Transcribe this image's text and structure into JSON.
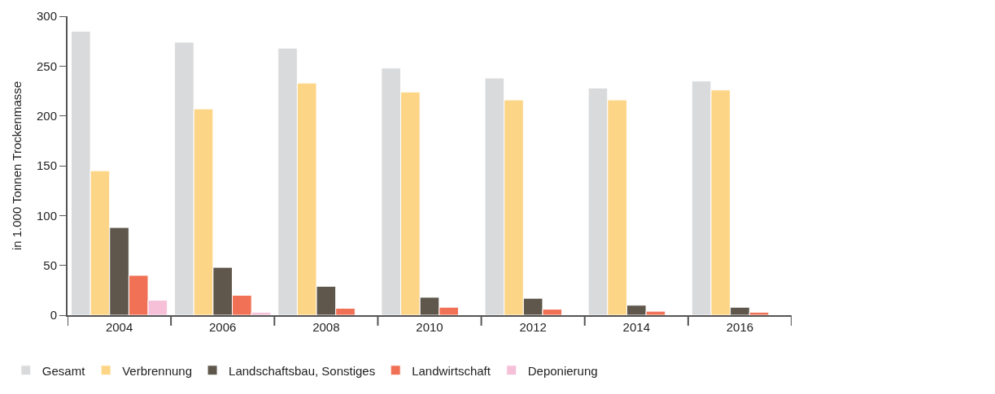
{
  "chart_data": {
    "type": "bar",
    "ylabel": "in 1.000 Tonnen Trockenmasse",
    "categories": [
      "2004",
      "2006",
      "2008",
      "2010",
      "2012",
      "2014",
      "2016"
    ],
    "series": [
      {
        "name": "Gesamt",
        "color": "#d9dadb",
        "values": [
          285,
          274,
          268,
          248,
          238,
          228,
          235
        ]
      },
      {
        "name": "Verbrennung",
        "color": "#fdd587",
        "values": [
          145,
          207,
          233,
          224,
          216,
          216,
          226
        ]
      },
      {
        "name": "Landschaftsbau, Sonstiges",
        "color": "#5f574c",
        "values": [
          88,
          48,
          29,
          18,
          17,
          10,
          8
        ]
      },
      {
        "name": "Landwirtschaft",
        "color": "#f07155",
        "values": [
          40,
          20,
          7,
          8,
          6,
          4,
          3
        ]
      },
      {
        "name": "Deponierung",
        "color": "#f6c0d9",
        "values": [
          15,
          3,
          null,
          null,
          null,
          null,
          null
        ]
      }
    ],
    "ylim": [
      0,
      300
    ],
    "yticks": [
      0,
      50,
      100,
      150,
      200,
      250,
      300
    ],
    "legend": "bottom"
  }
}
